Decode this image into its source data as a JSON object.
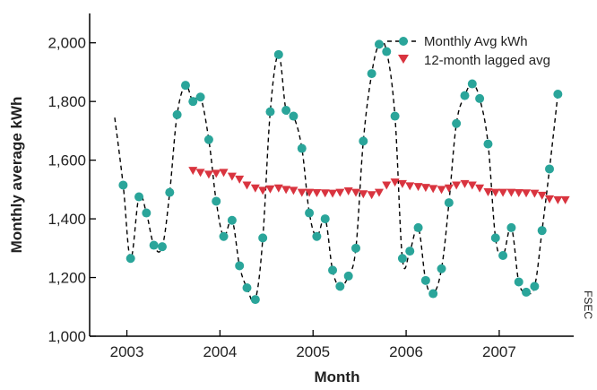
{
  "colors": {
    "series_monthly": "#2aa59a",
    "series_lagged": "#d9343f",
    "axis": "#000000",
    "dashed_line": "#000000"
  },
  "credit": "FSEC",
  "chart_data": {
    "type": "line",
    "xlabel": "Month",
    "ylabel": "Monthly average kWh",
    "xlim": [
      2002.6,
      2007.8
    ],
    "ylim": [
      1000,
      2100
    ],
    "xticks": [
      2003,
      2004,
      2005,
      2006,
      2007
    ],
    "xtick_labels": [
      "2003",
      "2004",
      "2005",
      "2006",
      "2007"
    ],
    "yticks": [
      1000,
      1200,
      1400,
      1600,
      1800,
      2000
    ],
    "ytick_labels": [
      "1,000",
      "1,200",
      "1,400",
      "1,600",
      "1,800",
      "2,000"
    ],
    "grid": false,
    "legend_position": "top-right",
    "series": [
      {
        "name": "Monthly Avg kWh",
        "marker": "circle",
        "line": "dashed",
        "line_start": [
          2002.87,
          1745
        ],
        "x": [
          2002.96,
          2003.04,
          2003.13,
          2003.21,
          2003.29,
          2003.38,
          2003.46,
          2003.54,
          2003.63,
          2003.71,
          2003.79,
          2003.88,
          2003.96,
          2004.04,
          2004.13,
          2004.21,
          2004.29,
          2004.38,
          2004.46,
          2004.54,
          2004.63,
          2004.71,
          2004.79,
          2004.88,
          2004.96,
          2005.04,
          2005.13,
          2005.21,
          2005.29,
          2005.38,
          2005.46,
          2005.54,
          2005.63,
          2005.71,
          2005.79,
          2005.88,
          2005.96,
          2006.04,
          2006.13,
          2006.21,
          2006.29,
          2006.38,
          2006.46,
          2006.54,
          2006.63,
          2006.71,
          2006.79,
          2006.88,
          2006.96,
          2007.04,
          2007.13,
          2007.21,
          2007.29,
          2007.38,
          2007.46,
          2007.54,
          2007.63
        ],
        "y": [
          1515,
          1265,
          1475,
          1420,
          1310,
          1305,
          1490,
          1755,
          1855,
          1800,
          1815,
          1670,
          1460,
          1340,
          1395,
          1240,
          1165,
          1125,
          1335,
          1765,
          1960,
          1770,
          1750,
          1640,
          1420,
          1340,
          1400,
          1225,
          1170,
          1205,
          1300,
          1665,
          1895,
          1995,
          1970,
          1750,
          1265,
          1290,
          1370,
          1190,
          1145,
          1230,
          1455,
          1725,
          1820,
          1860,
          1810,
          1655,
          1335,
          1275,
          1370,
          1185,
          1150,
          1170,
          1360,
          1570,
          1825
        ]
      },
      {
        "name": "12-month lagged avg",
        "marker": "triangle-down",
        "line": "none",
        "x": [
          2003.71,
          2003.79,
          2003.88,
          2003.96,
          2004.04,
          2004.13,
          2004.21,
          2004.29,
          2004.38,
          2004.46,
          2004.54,
          2004.63,
          2004.71,
          2004.79,
          2004.88,
          2004.96,
          2005.04,
          2005.13,
          2005.21,
          2005.29,
          2005.38,
          2005.46,
          2005.54,
          2005.63,
          2005.71,
          2005.79,
          2005.88,
          2005.96,
          2006.04,
          2006.13,
          2006.21,
          2006.29,
          2006.38,
          2006.46,
          2006.54,
          2006.63,
          2006.71,
          2006.79,
          2006.88,
          2006.96,
          2007.04,
          2007.13,
          2007.21,
          2007.29,
          2007.38,
          2007.46,
          2007.54,
          2007.63,
          2007.71
        ],
        "y": [
          1565,
          1558,
          1552,
          1555,
          1558,
          1545,
          1535,
          1515,
          1505,
          1497,
          1502,
          1505,
          1500,
          1497,
          1490,
          1490,
          1489,
          1488,
          1487,
          1490,
          1495,
          1490,
          1485,
          1482,
          1490,
          1515,
          1525,
          1520,
          1512,
          1510,
          1507,
          1503,
          1500,
          1505,
          1515,
          1520,
          1515,
          1505,
          1492,
          1490,
          1490,
          1490,
          1489,
          1488,
          1487,
          1480,
          1468,
          1465,
          1465
        ]
      }
    ]
  }
}
